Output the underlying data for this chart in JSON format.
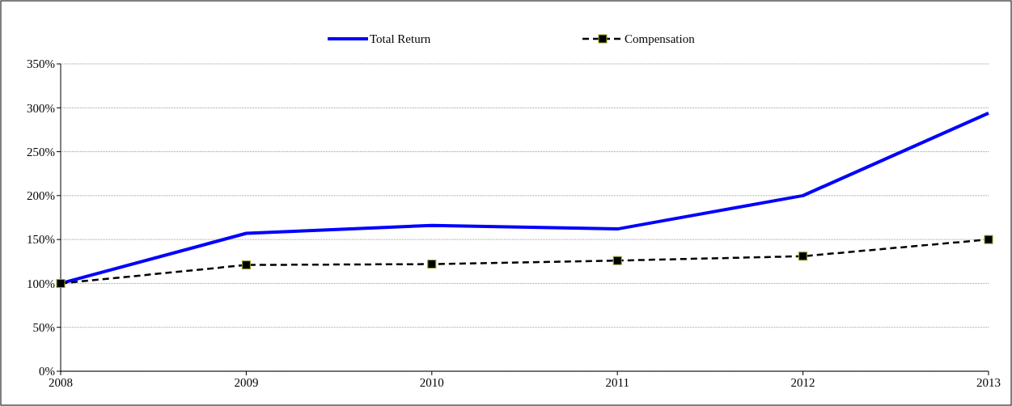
{
  "chart_data": {
    "type": "line",
    "x": [
      2008,
      2009,
      2010,
      2011,
      2012,
      2013
    ],
    "xlim": [
      2008,
      2013
    ],
    "xticks": [
      2008,
      2009,
      2010,
      2011,
      2012,
      2013
    ],
    "ylim": [
      0,
      350
    ],
    "yticks": [
      {
        "value": 0,
        "label": "0%"
      },
      {
        "value": 50,
        "label": "50%"
      },
      {
        "value": 100,
        "label": "100%"
      },
      {
        "value": 150,
        "label": "150%"
      },
      {
        "value": 200,
        "label": "200%"
      },
      {
        "value": 250,
        "label": "250%"
      },
      {
        "value": 300,
        "label": "300%"
      },
      {
        "value": 350,
        "label": "350%"
      }
    ],
    "grid": "y",
    "legend": "top",
    "series": [
      {
        "name": "Total Return",
        "color": "#0000ff",
        "marker": "none",
        "line_style": "solid",
        "values": [
          100,
          157,
          166,
          162,
          200,
          294
        ]
      },
      {
        "name": "Compensation",
        "color": "#000000",
        "marker": "square",
        "line_style": "dashed",
        "values": [
          100,
          121,
          122,
          126,
          131,
          150
        ]
      }
    ]
  }
}
